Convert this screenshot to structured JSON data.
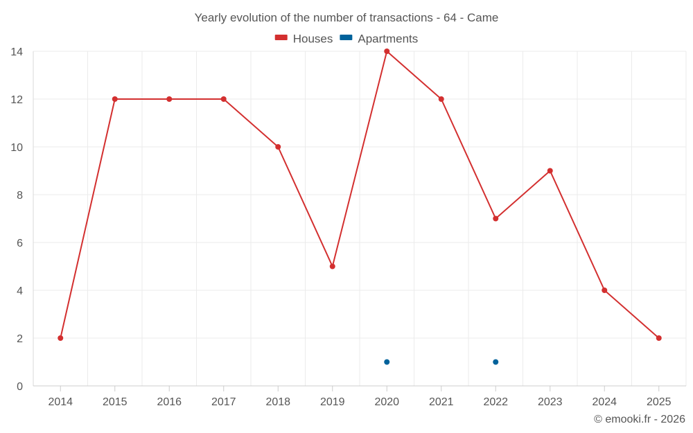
{
  "chart_data": {
    "type": "line",
    "title": "Yearly evolution of the number of transactions - 64 - Came",
    "xlabel": "",
    "ylabel": "",
    "categories": [
      "2014",
      "2015",
      "2016",
      "2017",
      "2018",
      "2019",
      "2020",
      "2021",
      "2022",
      "2023",
      "2024",
      "2025"
    ],
    "ylim": [
      0,
      14
    ],
    "yticks": [
      "0",
      "2",
      "4",
      "6",
      "8",
      "10",
      "12",
      "14"
    ],
    "grid": true,
    "legend_position": "top-center",
    "series": [
      {
        "name": "Houses",
        "color": "#d32f2f",
        "values": [
          2,
          12,
          12,
          12,
          10,
          5,
          14,
          12,
          7,
          9,
          4,
          2
        ]
      },
      {
        "name": "Apartments",
        "color": "#00629b",
        "values": [
          null,
          null,
          null,
          null,
          null,
          null,
          1,
          null,
          1,
          null,
          null,
          null
        ]
      }
    ]
  },
  "footer": {
    "copyright": "© emooki.fr - 2026"
  }
}
